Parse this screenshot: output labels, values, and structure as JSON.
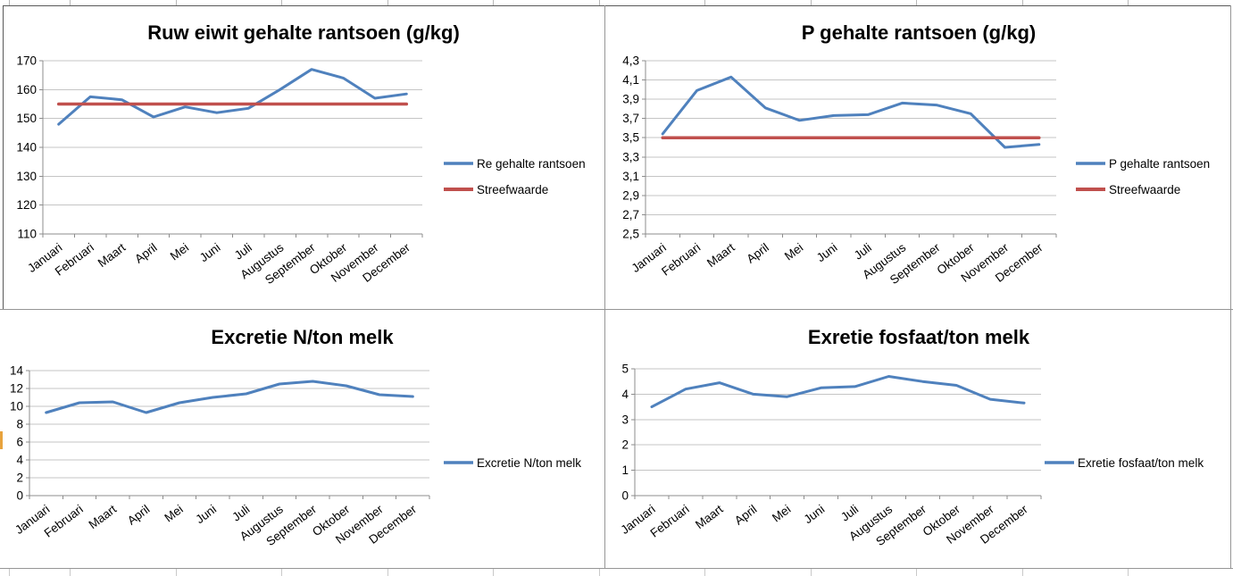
{
  "window": {
    "kind": "spreadsheet-chart-dashboard",
    "left_edge_marker_color": "#E8A33D"
  },
  "colors": {
    "series_blue": "#4F81BD",
    "series_red": "#C0504D",
    "gridline": "#C5C5C5",
    "axis": "#8C8C8C",
    "panel_border_dark": "#595959",
    "panel_border_light": "#969696",
    "cell_gridline": "#C9C9C9",
    "text": "#000000",
    "background": "#FFFFFF"
  },
  "chart_data": [
    {
      "id": "ruw-eiwit",
      "type": "line",
      "title": "Ruw eiwit gehalte rantsoen (g/kg)",
      "categories": [
        "Januari",
        "Februari",
        "Maart",
        "April",
        "Mei",
        "Juni",
        "Juli",
        "Augustus",
        "September",
        "Oktober",
        "November",
        "December"
      ],
      "series": [
        {
          "name": "Re gehalte rantsoen",
          "color": "#4F81BD",
          "stroke_width": 3,
          "values": [
            148,
            157.5,
            156.5,
            150.5,
            154,
            152,
            153.5,
            160,
            167,
            164,
            157,
            158.5
          ]
        },
        {
          "name": "Streefwaarde",
          "color": "#C0504D",
          "stroke_width": 3.5,
          "values": [
            155,
            155,
            155,
            155,
            155,
            155,
            155,
            155,
            155,
            155,
            155,
            155
          ]
        }
      ],
      "ylim": [
        110,
        170
      ],
      "yticks": [
        "110",
        "120",
        "130",
        "140",
        "150",
        "160",
        "170"
      ],
      "grid": true,
      "legend_position": "right"
    },
    {
      "id": "p-gehalte",
      "type": "line",
      "title": "P gehalte rantsoen (g/kg)",
      "categories": [
        "Januari",
        "Februari",
        "Maart",
        "April",
        "Mei",
        "Juni",
        "Juli",
        "Augustus",
        "September",
        "Oktober",
        "November",
        "December"
      ],
      "series": [
        {
          "name": "P gehalte rantsoen",
          "color": "#4F81BD",
          "stroke_width": 3,
          "values": [
            3.54,
            3.99,
            4.13,
            3.81,
            3.68,
            3.73,
            3.74,
            3.86,
            3.84,
            3.75,
            3.4,
            3.43
          ]
        },
        {
          "name": "Streefwaarde",
          "color": "#C0504D",
          "stroke_width": 3.5,
          "values": [
            3.5,
            3.5,
            3.5,
            3.5,
            3.5,
            3.5,
            3.5,
            3.5,
            3.5,
            3.5,
            3.5,
            3.5
          ]
        }
      ],
      "ylim": [
        2.5,
        4.3
      ],
      "yticks": [
        "2,5",
        "2,7",
        "2,9",
        "3,1",
        "3,3",
        "3,5",
        "3,7",
        "3,9",
        "4,1",
        "4,3"
      ],
      "grid": true,
      "legend_position": "right"
    },
    {
      "id": "excretie-n",
      "type": "line",
      "title": "Excretie N/ton melk",
      "categories": [
        "Januari",
        "Februari",
        "Maart",
        "April",
        "Mei",
        "Juni",
        "Juli",
        "Augustus",
        "September",
        "Oktober",
        "November",
        "December"
      ],
      "series": [
        {
          "name": "Excretie N/ton melk",
          "color": "#4F81BD",
          "stroke_width": 3,
          "values": [
            9.3,
            10.4,
            10.5,
            9.3,
            10.4,
            11.0,
            11.4,
            12.5,
            12.8,
            12.3,
            11.3,
            11.1
          ]
        }
      ],
      "ylim": [
        0,
        14
      ],
      "yticks": [
        "0",
        "2",
        "4",
        "6",
        "8",
        "10",
        "12",
        "14"
      ],
      "grid": true,
      "legend_position": "right"
    },
    {
      "id": "exretie-fosfaat",
      "type": "line",
      "title": "Exretie fosfaat/ton melk",
      "categories": [
        "Januari",
        "Februari",
        "Maart",
        "April",
        "Mei",
        "Juni",
        "Juli",
        "Augustus",
        "September",
        "Oktober",
        "November",
        "December"
      ],
      "series": [
        {
          "name": "Exretie fosfaat/ton melk",
          "color": "#4F81BD",
          "stroke_width": 3,
          "values": [
            3.5,
            4.2,
            4.45,
            4.0,
            3.9,
            4.25,
            4.3,
            4.7,
            4.5,
            4.35,
            3.8,
            3.65
          ]
        }
      ],
      "ylim": [
        0,
        5
      ],
      "yticks": [
        "0",
        "1",
        "2",
        "3",
        "4",
        "5"
      ],
      "grid": true,
      "legend_position": "right"
    }
  ]
}
